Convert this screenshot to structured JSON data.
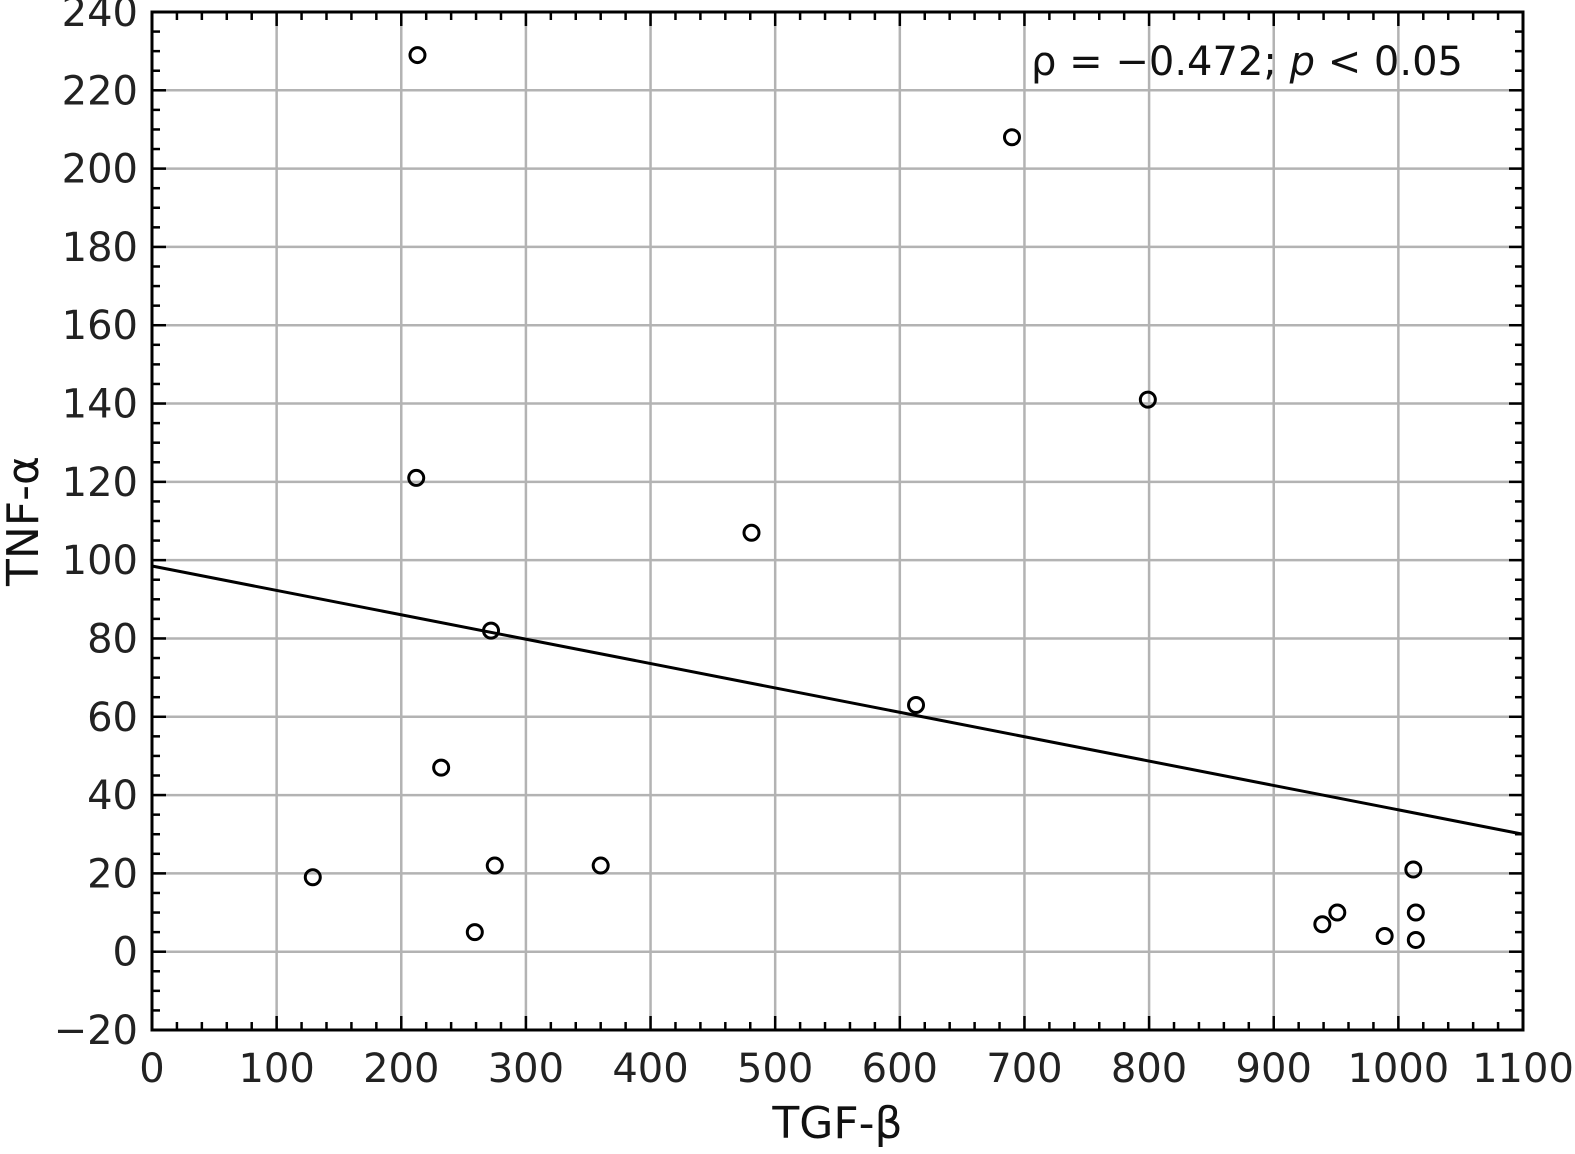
{
  "chart_data": {
    "type": "scatter",
    "title": "",
    "xlabel": "TGF-β",
    "ylabel": "TNF-α",
    "xlim": [
      0,
      1100
    ],
    "ylim": [
      -20,
      240
    ],
    "x_ticks": [
      0,
      100,
      200,
      300,
      400,
      500,
      600,
      700,
      800,
      900,
      1000,
      1100
    ],
    "y_ticks": [
      -20,
      0,
      20,
      40,
      60,
      80,
      100,
      120,
      140,
      160,
      180,
      200,
      220,
      240
    ],
    "y_tick_labels": [
      "−20",
      "0",
      "20",
      "40",
      "60",
      "80",
      "100",
      "120",
      "140",
      "160",
      "180",
      "200",
      "220",
      "240"
    ],
    "grid": true,
    "series": [
      {
        "points": [
          {
            "x": 129,
            "y": 19
          },
          {
            "x": 213,
            "y": 229
          },
          {
            "x": 212,
            "y": 121
          },
          {
            "x": 232,
            "y": 47
          },
          {
            "x": 259,
            "y": 5
          },
          {
            "x": 272,
            "y": 82
          },
          {
            "x": 275,
            "y": 22
          },
          {
            "x": 360,
            "y": 22
          },
          {
            "x": 481,
            "y": 107
          },
          {
            "x": 613,
            "y": 63
          },
          {
            "x": 690,
            "y": 208
          },
          {
            "x": 799,
            "y": 141
          },
          {
            "x": 939,
            "y": 7
          },
          {
            "x": 951,
            "y": 10
          },
          {
            "x": 989,
            "y": 4
          },
          {
            "x": 1012,
            "y": 21
          },
          {
            "x": 1014,
            "y": 10
          },
          {
            "x": 1014,
            "y": 3
          }
        ]
      }
    ],
    "regression_line": {
      "x": [
        0,
        1100
      ],
      "y": [
        98.5,
        30
      ]
    },
    "annotation": {
      "rho_text": "ρ = −0.472; ",
      "p_text": "p",
      "rest_text": " < 0.05"
    }
  }
}
